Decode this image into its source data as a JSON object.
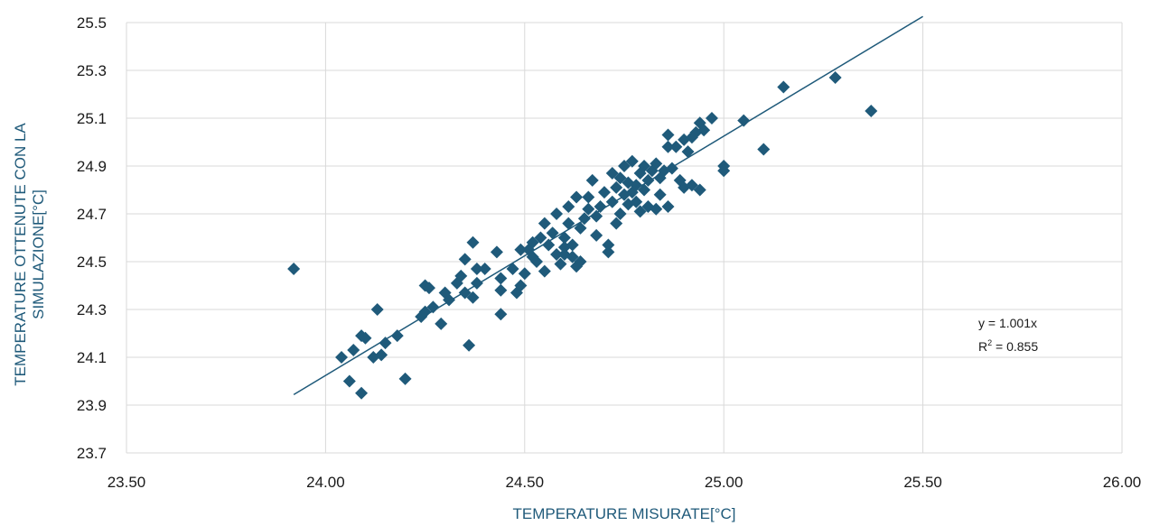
{
  "chart_data": {
    "type": "scatter",
    "title": "",
    "xlabel": "TEMPERATURE MISURATE[°C]",
    "ylabel": [
      "TEMPERATURE OTTENUTE CON LA",
      "SIMULAZIONE[°C]"
    ],
    "xlim": [
      23.5,
      26.0
    ],
    "ylim": [
      23.7,
      25.5
    ],
    "xticks": [
      "23.50",
      "24.00",
      "24.50",
      "25.00",
      "25.50",
      "26.00"
    ],
    "yticks": [
      "23.7",
      "23.9",
      "24.1",
      "24.3",
      "24.5",
      "24.7",
      "24.9",
      "25.1",
      "25.3",
      "25.5"
    ],
    "grid": true,
    "marker": "diamond",
    "marker_color": "#1f5a7a",
    "trendline": {
      "slope": 1.001,
      "x_start": 23.92,
      "x_end": 25.5,
      "color": "#1f5a7a"
    },
    "equation_text": "y = 1.001x",
    "r2_label": "R",
    "r2_sup": "2",
    "r2_value": " = 0.855",
    "points": [
      [
        23.92,
        24.47
      ],
      [
        24.04,
        24.1
      ],
      [
        24.06,
        24.0
      ],
      [
        24.07,
        24.13
      ],
      [
        24.09,
        23.95
      ],
      [
        24.09,
        24.19
      ],
      [
        24.1,
        24.18
      ],
      [
        24.12,
        24.1
      ],
      [
        24.13,
        24.3
      ],
      [
        24.14,
        24.11
      ],
      [
        24.15,
        24.16
      ],
      [
        24.18,
        24.19
      ],
      [
        24.2,
        24.01
      ],
      [
        24.24,
        24.27
      ],
      [
        24.25,
        24.4
      ],
      [
        24.25,
        24.29
      ],
      [
        24.26,
        24.39
      ],
      [
        24.27,
        24.31
      ],
      [
        24.29,
        24.24
      ],
      [
        24.3,
        24.37
      ],
      [
        24.31,
        24.34
      ],
      [
        24.33,
        24.41
      ],
      [
        24.34,
        24.44
      ],
      [
        24.35,
        24.51
      ],
      [
        24.35,
        24.37
      ],
      [
        24.36,
        24.15
      ],
      [
        24.37,
        24.58
      ],
      [
        24.37,
        24.35
      ],
      [
        24.38,
        24.41
      ],
      [
        24.38,
        24.47
      ],
      [
        24.4,
        24.47
      ],
      [
        24.43,
        24.54
      ],
      [
        24.44,
        24.38
      ],
      [
        24.44,
        24.28
      ],
      [
        24.44,
        24.43
      ],
      [
        24.47,
        24.47
      ],
      [
        24.48,
        24.37
      ],
      [
        24.49,
        24.4
      ],
      [
        24.49,
        24.55
      ],
      [
        24.5,
        24.45
      ],
      [
        24.51,
        24.55
      ],
      [
        24.52,
        24.52
      ],
      [
        24.52,
        24.58
      ],
      [
        24.53,
        24.5
      ],
      [
        24.54,
        24.6
      ],
      [
        24.55,
        24.46
      ],
      [
        24.55,
        24.66
      ],
      [
        24.56,
        24.57
      ],
      [
        24.57,
        24.62
      ],
      [
        24.58,
        24.53
      ],
      [
        24.58,
        24.7
      ],
      [
        24.59,
        24.49
      ],
      [
        24.6,
        24.56
      ],
      [
        24.6,
        24.6
      ],
      [
        24.6,
        24.53
      ],
      [
        24.61,
        24.66
      ],
      [
        24.61,
        24.73
      ],
      [
        24.62,
        24.52
      ],
      [
        24.62,
        24.57
      ],
      [
        24.63,
        24.48
      ],
      [
        24.63,
        24.77
      ],
      [
        24.64,
        24.64
      ],
      [
        24.64,
        24.5
      ],
      [
        24.65,
        24.68
      ],
      [
        24.66,
        24.72
      ],
      [
        24.66,
        24.77
      ],
      [
        24.67,
        24.84
      ],
      [
        24.68,
        24.61
      ],
      [
        24.68,
        24.69
      ],
      [
        24.69,
        24.73
      ],
      [
        24.7,
        24.79
      ],
      [
        24.71,
        24.54
      ],
      [
        24.71,
        24.57
      ],
      [
        24.72,
        24.87
      ],
      [
        24.72,
        24.75
      ],
      [
        24.73,
        24.66
      ],
      [
        24.73,
        24.81
      ],
      [
        24.74,
        24.7
      ],
      [
        24.74,
        24.85
      ],
      [
        24.75,
        24.78
      ],
      [
        24.75,
        24.9
      ],
      [
        24.76,
        24.83
      ],
      [
        24.76,
        24.74
      ],
      [
        24.77,
        24.92
      ],
      [
        24.77,
        24.79
      ],
      [
        24.78,
        24.82
      ],
      [
        24.78,
        24.75
      ],
      [
        24.79,
        24.87
      ],
      [
        24.79,
        24.71
      ],
      [
        24.8,
        24.8
      ],
      [
        24.8,
        24.9
      ],
      [
        24.81,
        24.84
      ],
      [
        24.81,
        24.73
      ],
      [
        24.82,
        24.88
      ],
      [
        24.83,
        24.91
      ],
      [
        24.83,
        24.72
      ],
      [
        24.84,
        24.78
      ],
      [
        24.84,
        24.85
      ],
      [
        24.85,
        24.88
      ],
      [
        24.86,
        24.73
      ],
      [
        24.86,
        25.03
      ],
      [
        24.86,
        24.98
      ],
      [
        24.87,
        24.89
      ],
      [
        24.88,
        24.98
      ],
      [
        24.89,
        24.84
      ],
      [
        24.9,
        25.01
      ],
      [
        24.9,
        24.81
      ],
      [
        24.91,
        24.96
      ],
      [
        24.92,
        25.02
      ],
      [
        24.92,
        24.82
      ],
      [
        24.93,
        25.04
      ],
      [
        24.94,
        24.8
      ],
      [
        24.94,
        25.08
      ],
      [
        24.95,
        25.05
      ],
      [
        24.97,
        25.1
      ],
      [
        25.0,
        24.9
      ],
      [
        25.0,
        24.88
      ],
      [
        25.05,
        25.09
      ],
      [
        25.1,
        24.97
      ],
      [
        25.15,
        25.23
      ],
      [
        25.28,
        25.27
      ],
      [
        25.37,
        25.13
      ]
    ]
  }
}
